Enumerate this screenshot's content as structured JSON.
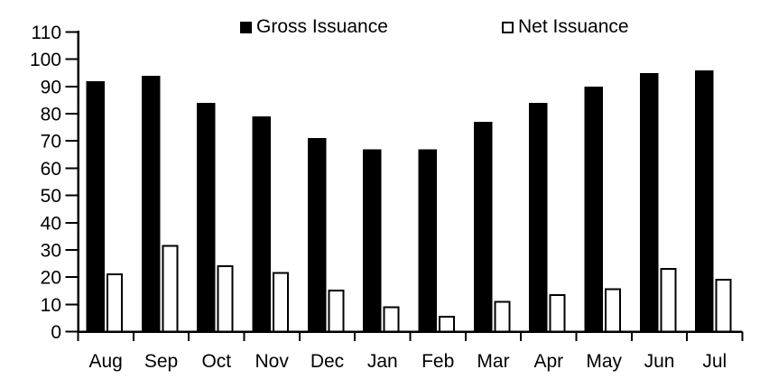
{
  "chart_data": {
    "type": "bar",
    "title": "",
    "xlabel": "",
    "ylabel": "",
    "categories": [
      "Aug",
      "Sep",
      "Oct",
      "Nov",
      "Dec",
      "Jan",
      "Feb",
      "Mar",
      "Apr",
      "May",
      "Jun",
      "Jul"
    ],
    "series": [
      {
        "name": "Gross Issuance",
        "values": [
          92,
          94,
          84,
          79,
          71,
          67,
          67,
          77,
          84,
          90,
          95,
          96
        ],
        "fill": "#000000",
        "stroke": "#000000"
      },
      {
        "name": "Net Issuance",
        "values": [
          21,
          31.5,
          24,
          21.5,
          15,
          9,
          5.5,
          11,
          13.5,
          15.5,
          23,
          19
        ],
        "fill": "#ffffff",
        "stroke": "#000000"
      }
    ],
    "ylim": [
      0,
      110
    ],
    "yticks": [
      0,
      10,
      20,
      30,
      40,
      50,
      60,
      70,
      80,
      90,
      100,
      110
    ],
    "grid": false,
    "legend_position": "top-inside",
    "axis_color": "#000000",
    "text_color": "#000000",
    "background_color": "#ffffff"
  }
}
